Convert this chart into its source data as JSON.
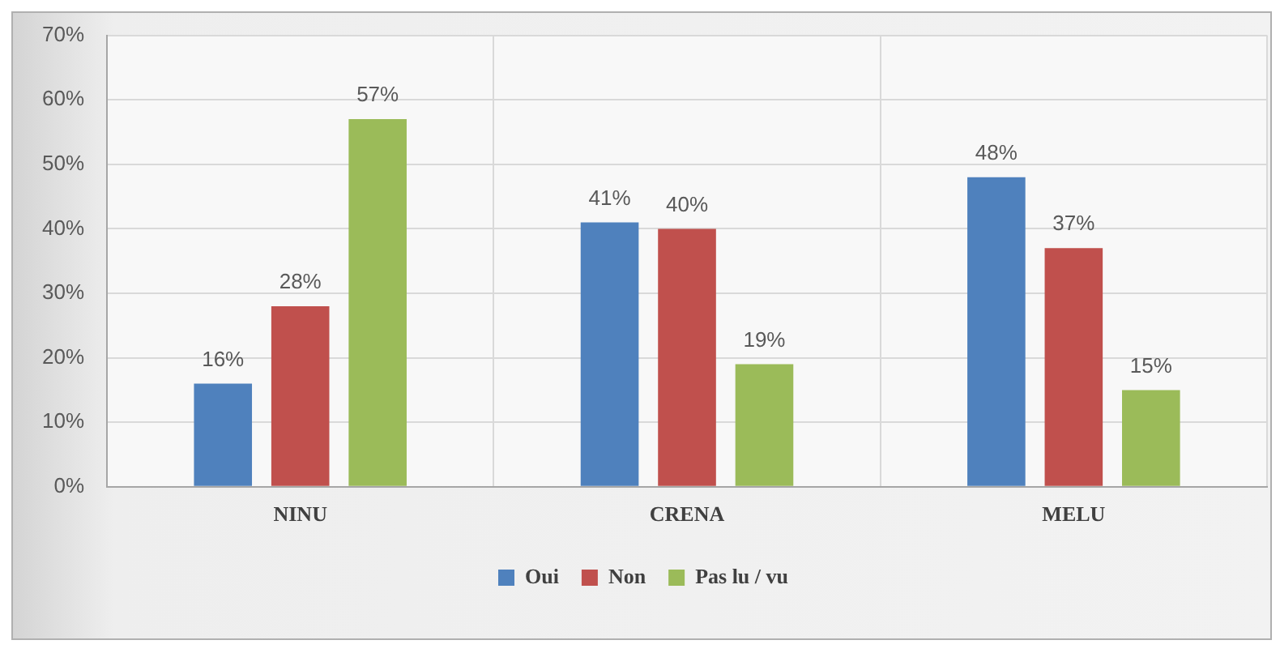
{
  "chart_data": {
    "type": "bar",
    "categories": [
      "NINU",
      "CRENA",
      "MELU"
    ],
    "series": [
      {
        "name": "Oui",
        "color": "#4f81bd",
        "values": [
          16,
          41,
          48
        ],
        "value_labels": [
          "16%",
          "41%",
          "48%"
        ]
      },
      {
        "name": "Non",
        "color": "#c0504d",
        "values": [
          28,
          40,
          37
        ],
        "value_labels": [
          "28%",
          "40%",
          "37%"
        ]
      },
      {
        "name": "Pas lu / vu",
        "color": "#9bbb59",
        "values": [
          57,
          19,
          15
        ],
        "value_labels": [
          "57%",
          "19%",
          "15%"
        ]
      }
    ],
    "ylim": [
      0,
      70
    ],
    "yticks": [
      {
        "value": 0,
        "label": "0%"
      },
      {
        "value": 10,
        "label": "10%"
      },
      {
        "value": 20,
        "label": "20%"
      },
      {
        "value": 30,
        "label": "30%"
      },
      {
        "value": 40,
        "label": "40%"
      },
      {
        "value": 50,
        "label": "50%"
      },
      {
        "value": 60,
        "label": "60%"
      },
      {
        "value": 70,
        "label": "70%"
      }
    ],
    "grid": true,
    "legend": "bottom"
  }
}
